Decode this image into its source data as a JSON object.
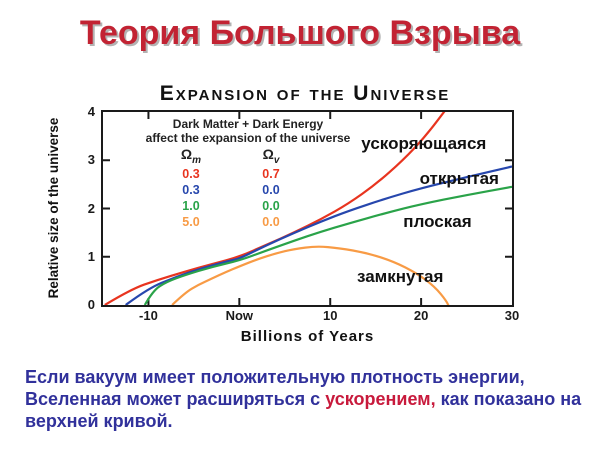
{
  "slide": {
    "title": "Теория Большого Взрыва",
    "paragraph": {
      "line1": "Если вакуум имеет положительную плотность энергии,",
      "line2_before": "Вселенная может расширяться с ",
      "line2_accent": "ускорением,",
      "line2_after": " как показано на",
      "line3": "верхней кривой."
    }
  },
  "colors": {
    "title_red": "#c22333",
    "title_shadow": "#b3b3b3",
    "body_navy": "#31319b",
    "accent_red": "#c81a3c",
    "axis_black": "#1a1a1a"
  },
  "chart_data": {
    "type": "line",
    "title": "Expansion of the Universe",
    "xlabel": "Billions of Years",
    "ylabel": "Relative size of the universe",
    "xlim": [
      -15,
      30
    ],
    "ylim": [
      0,
      4
    ],
    "grid": false,
    "x_ticks": [
      {
        "value": -10,
        "label": "-10"
      },
      {
        "value": 0,
        "label": "Now"
      },
      {
        "value": 10,
        "label": "10"
      },
      {
        "value": 20,
        "label": "20"
      },
      {
        "value": 30,
        "label": "30"
      }
    ],
    "y_ticks": [
      {
        "value": 0,
        "label": "0"
      },
      {
        "value": 1,
        "label": "1"
      },
      {
        "value": 2,
        "label": "2"
      },
      {
        "value": 3,
        "label": "3"
      },
      {
        "value": 4,
        "label": "4"
      }
    ],
    "legend": {
      "position": "upper-left-inside",
      "heading_line1": "Dark Matter + Dark Energy",
      "heading_line2": "affect the expansion of the universe",
      "columns": [
        {
          "symbol": "Ω",
          "sub": "m"
        },
        {
          "symbol": "Ω",
          "sub": "v"
        }
      ]
    },
    "series": [
      {
        "name": "accelerating",
        "label_ru": "ускоряющаяся",
        "omega_m": "0.3",
        "omega_v": "0.7",
        "color": "#e8341f",
        "label_anchor": [
          20.3,
          3.34
        ],
        "points": [
          [
            -14.8,
            0
          ],
          [
            -12,
            0.32
          ],
          [
            -9,
            0.52
          ],
          [
            -6,
            0.69
          ],
          [
            -3,
            0.85
          ],
          [
            0,
            1.0
          ],
          [
            3,
            1.25
          ],
          [
            6,
            1.5
          ],
          [
            9,
            1.78
          ],
          [
            12,
            2.1
          ],
          [
            15,
            2.5
          ],
          [
            18,
            3.0
          ],
          [
            20.5,
            3.5
          ],
          [
            23,
            4.12
          ]
        ]
      },
      {
        "name": "open",
        "label_ru": "открытая",
        "omega_m": "0.3",
        "omega_v": "0.0",
        "color": "#2747ad",
        "label_anchor": [
          24.2,
          2.61
        ],
        "points": [
          [
            -12.5,
            0
          ],
          [
            -10,
            0.35
          ],
          [
            -7,
            0.58
          ],
          [
            -4,
            0.77
          ],
          [
            -1,
            0.92
          ],
          [
            0,
            0.96
          ],
          [
            3,
            1.24
          ],
          [
            6,
            1.49
          ],
          [
            9,
            1.73
          ],
          [
            12,
            1.95
          ],
          [
            16,
            2.2
          ],
          [
            20,
            2.42
          ],
          [
            25,
            2.65
          ],
          [
            30,
            2.87
          ]
        ]
      },
      {
        "name": "flat",
        "label_ru": "плоская",
        "omega_m": "1.0",
        "omega_v": "0.0",
        "color": "#2aa349",
        "label_anchor": [
          21.8,
          1.72
        ],
        "points": [
          [
            -10.4,
            0
          ],
          [
            -9.5,
            0.3
          ],
          [
            -8,
            0.48
          ],
          [
            -6,
            0.62
          ],
          [
            -3,
            0.79
          ],
          [
            0,
            0.92
          ],
          [
            3,
            1.13
          ],
          [
            6,
            1.33
          ],
          [
            9,
            1.52
          ],
          [
            12,
            1.69
          ],
          [
            16,
            1.9
          ],
          [
            20,
            2.09
          ],
          [
            25,
            2.28
          ],
          [
            30,
            2.45
          ]
        ]
      },
      {
        "name": "closed",
        "label_ru": "замкнутая",
        "omega_m": "5.0",
        "omega_v": "0.0",
        "color": "#f89b45",
        "label_anchor": [
          17.7,
          0.58
        ],
        "points": [
          [
            -7.4,
            0
          ],
          [
            -6,
            0.25
          ],
          [
            -4.5,
            0.42
          ],
          [
            -3,
            0.55
          ],
          [
            -1.5,
            0.68
          ],
          [
            0,
            0.8
          ],
          [
            2,
            0.95
          ],
          [
            4,
            1.07
          ],
          [
            6,
            1.16
          ],
          [
            8.5,
            1.22
          ],
          [
            11,
            1.18
          ],
          [
            14,
            1.08
          ],
          [
            17,
            0.9
          ],
          [
            19.5,
            0.66
          ],
          [
            21.5,
            0.38
          ],
          [
            22.8,
            0.08
          ],
          [
            23.1,
            -0.05
          ]
        ]
      }
    ]
  }
}
